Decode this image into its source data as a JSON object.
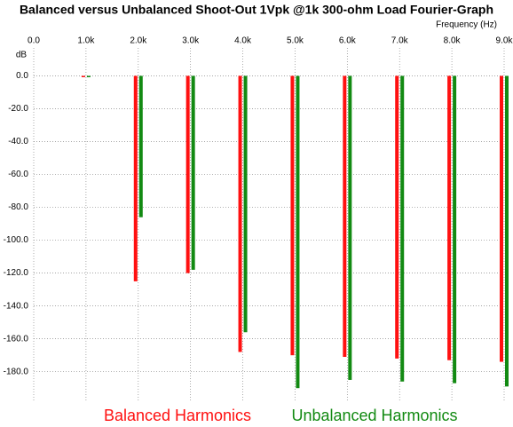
{
  "chart_data": {
    "type": "bar",
    "title": "Balanced versus Unbalanced Shoot-Out 1Vpk @1k 300-ohm Load Fourier-Graph",
    "x_label": "Frequency  (Hz)",
    "y_label": "dB",
    "x": [
      1000,
      2000,
      3000,
      4000,
      5000,
      6000,
      7000,
      8000,
      9000
    ],
    "series": [
      {
        "name": "Balanced Harmonics",
        "color": "#ff1010",
        "values": [
          0,
          -125,
          -120,
          -168,
          -170,
          -171,
          -172,
          -173,
          -174
        ]
      },
      {
        "name": "Unbalanced Harmonics",
        "color": "#128a12",
        "values": [
          0,
          -86,
          -118,
          -156,
          -190,
          -185,
          -186,
          -187,
          -189
        ]
      }
    ],
    "xlim": [
      0,
      9000
    ],
    "xticks": [
      {
        "value": 0,
        "label": "0.0"
      },
      {
        "value": 1000,
        "label": "1.0k"
      },
      {
        "value": 2000,
        "label": "2.0k"
      },
      {
        "value": 3000,
        "label": "3.0k"
      },
      {
        "value": 4000,
        "label": "4.0k"
      },
      {
        "value": 5000,
        "label": "5.0k"
      },
      {
        "value": 6000,
        "label": "6.0k"
      },
      {
        "value": 7000,
        "label": "7.0k"
      },
      {
        "value": 8000,
        "label": "8.0k"
      },
      {
        "value": 9000,
        "label": "9.0k"
      }
    ],
    "ylim": [
      -198,
      17
    ],
    "yticks": [
      {
        "value": 0,
        "label": "0.0"
      },
      {
        "value": -20,
        "label": "-20.0"
      },
      {
        "value": -40,
        "label": "-40.0"
      },
      {
        "value": -60,
        "label": "-60.0"
      },
      {
        "value": -80,
        "label": "-80.0"
      },
      {
        "value": -100,
        "label": "-100.0"
      },
      {
        "value": -120,
        "label": "-120.0"
      },
      {
        "value": -140,
        "label": "-140.0"
      },
      {
        "value": -160,
        "label": "-160.0"
      },
      {
        "value": -180,
        "label": "-180.0"
      }
    ],
    "grid": true
  }
}
